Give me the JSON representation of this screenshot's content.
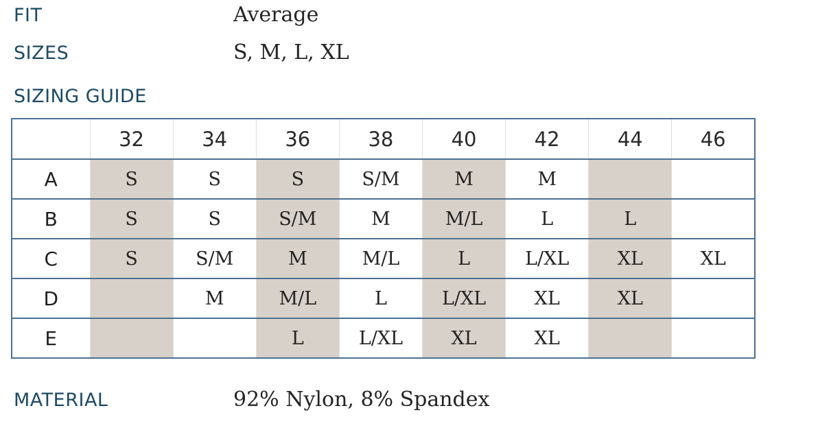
{
  "colors": {
    "label": "#1d4a63",
    "table_border": "#4c7090",
    "shaded_cell": "#d7d1c9",
    "body_text": "#242424",
    "background": "#ffffff"
  },
  "specs": {
    "fit": {
      "label": "FIT",
      "value": "Average"
    },
    "sizes": {
      "label": "SIZES",
      "value": "S, M, L, XL"
    },
    "material": {
      "label": "MATERIAL",
      "value": "92% Nylon, 8% Spandex"
    }
  },
  "sizing_guide": {
    "title": "SIZING GUIDE",
    "corner_header": "",
    "columns": [
      "32",
      "34",
      "36",
      "38",
      "40",
      "42",
      "44",
      "46"
    ],
    "shaded_columns": [
      "32",
      "36",
      "40",
      "44"
    ],
    "shaded_column_indexes": [
      0,
      2,
      4,
      6
    ],
    "rows": [
      {
        "label": "A",
        "cells": [
          "S",
          "S",
          "S",
          "S/M",
          "M",
          "M",
          "",
          ""
        ]
      },
      {
        "label": "B",
        "cells": [
          "S",
          "S",
          "S/M",
          "M",
          "M/L",
          "L",
          "L",
          ""
        ]
      },
      {
        "label": "C",
        "cells": [
          "S",
          "S/M",
          "M",
          "M/L",
          "L",
          "L/XL",
          "XL",
          "XL"
        ]
      },
      {
        "label": "D",
        "cells": [
          "",
          "M",
          "M/L",
          "L",
          "L/XL",
          "XL",
          "XL",
          ""
        ]
      },
      {
        "label": "E",
        "cells": [
          "",
          "",
          "L",
          "L/XL",
          "XL",
          "XL",
          "",
          ""
        ]
      }
    ]
  }
}
